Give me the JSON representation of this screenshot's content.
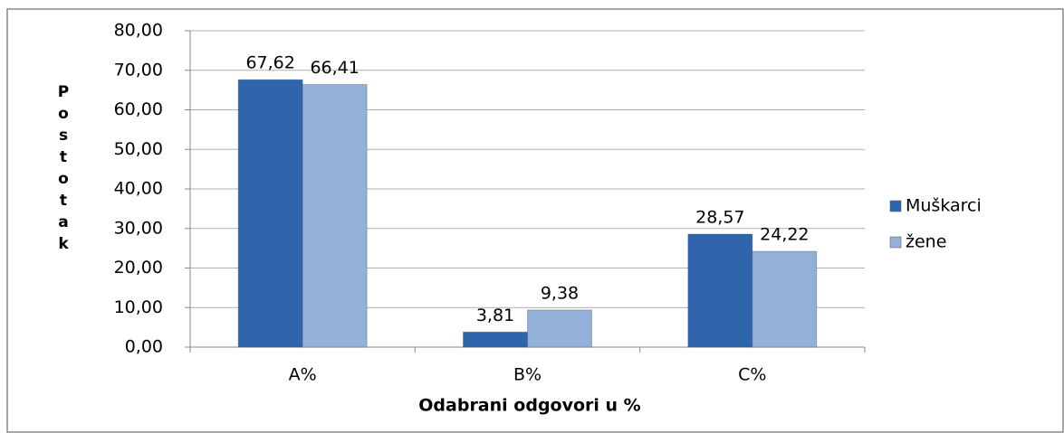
{
  "chart_data": {
    "type": "bar",
    "xlabel": "Odabrani odgovori u %",
    "ylabel": "Postotak",
    "categories": [
      "A%",
      "B%",
      "C%"
    ],
    "series": [
      {
        "name": "Muškarci",
        "color": "#2f66ab",
        "values": [
          67.62,
          3.81,
          28.57
        ],
        "value_labels": [
          "67,62",
          "3,81",
          "28,57"
        ]
      },
      {
        "name": "žene",
        "color": "#93b1d8",
        "values": [
          66.41,
          9.38,
          24.22
        ],
        "value_labels": [
          "66,41",
          "9,38",
          "24,22"
        ]
      }
    ],
    "ylim": [
      0,
      80
    ],
    "yticks": [
      {
        "value": 0,
        "label": "0,00"
      },
      {
        "value": 10,
        "label": "10,00"
      },
      {
        "value": 20,
        "label": "20,00"
      },
      {
        "value": 30,
        "label": "30,00"
      },
      {
        "value": 40,
        "label": "40,00"
      },
      {
        "value": 50,
        "label": "50,00"
      },
      {
        "value": 60,
        "label": "60,00"
      },
      {
        "value": 70,
        "label": "70,00"
      },
      {
        "value": 80,
        "label": "80,00"
      }
    ],
    "grid": true,
    "legend": "right"
  }
}
